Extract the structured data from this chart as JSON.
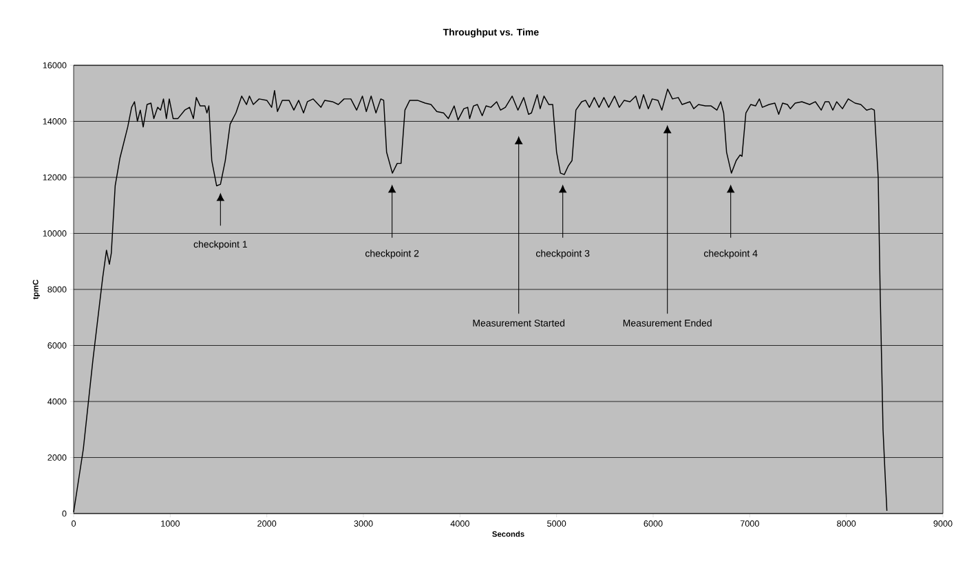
{
  "chart_data": {
    "type": "line",
    "title": "Throughput vs. Time",
    "xlabel": "Seconds",
    "ylabel": "tpmC",
    "x": [
      0,
      100,
      200,
      300,
      340,
      370,
      390,
      430,
      480,
      560,
      600,
      630,
      660,
      690,
      720,
      760,
      800,
      830,
      870,
      900,
      930,
      960,
      990,
      1030,
      1080,
      1150,
      1200,
      1240,
      1270,
      1310,
      1360,
      1380,
      1400,
      1430,
      1480,
      1520,
      1570,
      1620,
      1680,
      1740,
      1790,
      1820,
      1860,
      1920,
      2000,
      2050,
      2080,
      2110,
      2160,
      2230,
      2280,
      2330,
      2380,
      2420,
      2480,
      2560,
      2600,
      2680,
      2740,
      2800,
      2870,
      2930,
      2990,
      3030,
      3080,
      3130,
      3180,
      3210,
      3240,
      3300,
      3350,
      3390,
      3430,
      3480,
      3560,
      3640,
      3700,
      3760,
      3830,
      3880,
      3940,
      3980,
      4040,
      4080,
      4100,
      4140,
      4180,
      4230,
      4270,
      4320,
      4380,
      4420,
      4470,
      4540,
      4600,
      4660,
      4710,
      4740,
      4800,
      4830,
      4870,
      4920,
      4960,
      5000,
      5040,
      5080,
      5120,
      5160,
      5200,
      5260,
      5300,
      5340,
      5390,
      5440,
      5490,
      5540,
      5600,
      5650,
      5700,
      5760,
      5820,
      5860,
      5900,
      5950,
      5990,
      6050,
      6090,
      6150,
      6200,
      6260,
      6300,
      6380,
      6420,
      6470,
      6540,
      6600,
      6660,
      6700,
      6730,
      6760,
      6810,
      6860,
      6900,
      6920,
      6960,
      7010,
      7060,
      7100,
      7130,
      7200,
      7260,
      7300,
      7340,
      7390,
      7420,
      7470,
      7540,
      7620,
      7680,
      7740,
      7780,
      7820,
      7860,
      7900,
      7960,
      8020,
      8090,
      8150,
      8210,
      8260,
      8290,
      8330,
      8350,
      8380,
      8400,
      8420
    ],
    "series": [
      {
        "color": "#000000",
        "values": [
          50,
          2300,
          5500,
          8400,
          9400,
          8900,
          9300,
          11700,
          12700,
          13800,
          14500,
          14700,
          14000,
          14400,
          13800,
          14600,
          14650,
          14100,
          14500,
          14400,
          14800,
          14100,
          14800,
          14100,
          14100,
          14400,
          14500,
          14100,
          14850,
          14550,
          14550,
          14300,
          14550,
          12600,
          11700,
          11750,
          12600,
          13900,
          14300,
          14900,
          14600,
          14900,
          14600,
          14800,
          14750,
          14500,
          15100,
          14350,
          14750,
          14750,
          14400,
          14750,
          14300,
          14700,
          14800,
          14500,
          14750,
          14700,
          14600,
          14800,
          14800,
          14400,
          14900,
          14350,
          14900,
          14300,
          14800,
          14750,
          12900,
          12150,
          12500,
          12500,
          14400,
          14750,
          14750,
          14650,
          14600,
          14350,
          14300,
          14100,
          14550,
          14050,
          14450,
          14500,
          14100,
          14550,
          14600,
          14200,
          14550,
          14500,
          14700,
          14400,
          14500,
          14900,
          14400,
          14850,
          14250,
          14300,
          14950,
          14450,
          14900,
          14600,
          14600,
          12900,
          12150,
          12100,
          12400,
          12600,
          14400,
          14700,
          14750,
          14500,
          14850,
          14500,
          14850,
          14500,
          14900,
          14500,
          14750,
          14700,
          14900,
          14450,
          14950,
          14450,
          14800,
          14750,
          14400,
          15150,
          14800,
          14850,
          14600,
          14700,
          14450,
          14600,
          14550,
          14550,
          14400,
          14700,
          14300,
          12900,
          12150,
          12600,
          12800,
          12750,
          14300,
          14600,
          14550,
          14800,
          14500,
          14600,
          14650,
          14250,
          14650,
          14600,
          14450,
          14650,
          14700,
          14600,
          14700,
          14400,
          14700,
          14700,
          14400,
          14700,
          14450,
          14800,
          14650,
          14600,
          14400,
          14450,
          14400,
          12000,
          8000,
          3000,
          1500,
          100
        ]
      }
    ],
    "xlim": [
      0,
      9000
    ],
    "xticks": [
      0,
      1000,
      2000,
      3000,
      4000,
      5000,
      6000,
      7000,
      8000,
      9000
    ],
    "ylim": [
      0,
      16000
    ],
    "yticks": [
      0,
      2000,
      4000,
      6000,
      8000,
      10000,
      12000,
      14000,
      16000
    ],
    "grid": "y",
    "legend": false,
    "marker": "none",
    "line_style": "solid",
    "annotations": [
      "checkpoint 1",
      "checkpoint 2",
      "Measurement Started",
      "checkpoint 3",
      "Measurement Ended",
      "checkpoint 4"
    ]
  }
}
